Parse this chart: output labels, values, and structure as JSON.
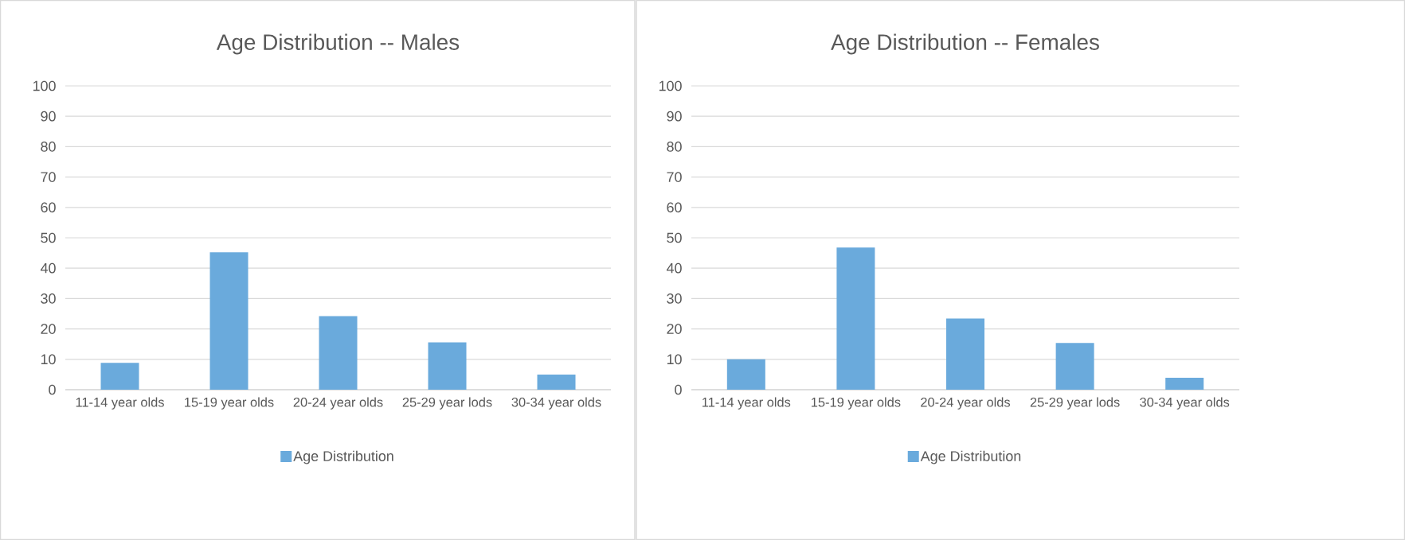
{
  "chart_data": [
    {
      "type": "bar",
      "title": "Age Distribution -- Males",
      "categories": [
        "11-14 year olds",
        "15-19 year olds",
        "20-24 year olds",
        "25-29 year lods",
        "30-34 year olds"
      ],
      "series": [
        {
          "name": "Age Distribution",
          "color": "#6aaadc",
          "values": [
            8.8,
            45.2,
            24.2,
            15.6,
            5.0
          ]
        }
      ],
      "ylim": [
        0,
        100
      ],
      "yticks": [
        0,
        10,
        20,
        30,
        40,
        50,
        60,
        70,
        80,
        90,
        100
      ],
      "grid": "y",
      "legend": "bottom"
    },
    {
      "type": "bar",
      "title": "Age Distribution -- Females",
      "categories": [
        "11-14 year olds",
        "15-19 year olds",
        "20-24 year olds",
        "25-29 year lods",
        "30-34 year olds"
      ],
      "series": [
        {
          "name": "Age Distribution",
          "color": "#6aaadc",
          "values": [
            10.0,
            46.8,
            23.4,
            15.4,
            3.9
          ]
        }
      ],
      "ylim": [
        0,
        100
      ],
      "yticks": [
        0,
        10,
        20,
        30,
        40,
        50,
        60,
        70,
        80,
        90,
        100
      ],
      "grid": "y",
      "legend": "bottom"
    }
  ]
}
